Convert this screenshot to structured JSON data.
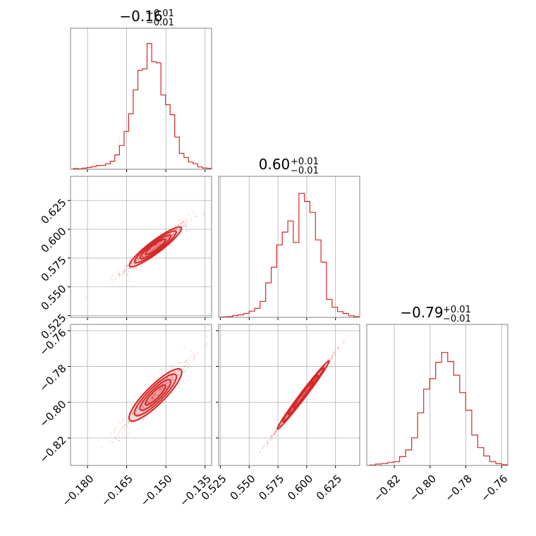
{
  "colors": {
    "accent": "#d62728",
    "grid": "#b0b0b0",
    "frame": "#808080",
    "background": "#ffffff"
  },
  "chart_data": {
    "type": "corner",
    "parameters": [
      {
        "title_main": "−0.16",
        "title_plus": "+0.01",
        "title_minus": "−0.01",
        "range": [
          -0.1865,
          -0.1325
        ],
        "ticks": [
          -0.18,
          -0.165,
          -0.15,
          -0.135
        ],
        "tick_labels": [
          "−0.180",
          "−0.165",
          "−0.150",
          "−0.135"
        ],
        "histogram": [
          0.006,
          0.003,
          0.008,
          0.013,
          0.02,
          0.027,
          0.028,
          0.04,
          0.058,
          0.104,
          0.172,
          0.274,
          0.401,
          0.575,
          0.716,
          0.726,
          0.91,
          0.778,
          0.77,
          0.537,
          0.467,
          0.395,
          0.233,
          0.115,
          0.085,
          0.052,
          0.04,
          0.017,
          0.009,
          0.007
        ]
      },
      {
        "title_main": "0.60",
        "title_plus": "+0.01",
        "title_minus": "−0.01",
        "range": [
          0.5235,
          0.646
        ],
        "ticks": [
          0.525,
          0.55,
          0.575,
          0.6,
          0.625
        ],
        "tick_labels": [
          "0.525",
          "0.550",
          "0.575",
          "0.600",
          "0.625"
        ],
        "histogram": [
          0.003,
          0.006,
          0.013,
          0.018,
          0.028,
          0.045,
          0.066,
          0.116,
          0.25,
          0.362,
          0.524,
          0.617,
          0.698,
          0.542,
          0.897,
          0.839,
          0.759,
          0.56,
          0.4,
          0.13,
          0.073,
          0.042,
          0.028,
          0.011,
          0.005
        ]
      },
      {
        "title_main": "−0.79",
        "title_plus": "+0.01",
        "title_minus": "−0.01",
        "range": [
          -0.8354,
          -0.7565
        ],
        "ticks": [
          -0.82,
          -0.8,
          -0.78,
          -0.76
        ],
        "tick_labels": [
          "−0.82",
          "−0.80",
          "−0.78",
          "−0.76"
        ],
        "histogram": [
          0.003,
          0.01,
          0.014,
          0.022,
          0.027,
          0.064,
          0.113,
          0.2,
          0.381,
          0.552,
          0.628,
          0.747,
          0.818,
          0.752,
          0.653,
          0.527,
          0.4,
          0.22,
          0.129,
          0.069,
          0.028,
          0.013,
          0.005
        ]
      }
    ],
    "pairs": [
      {
        "x": 0,
        "y": 1,
        "slope": 1.7,
        "spread": 0.003,
        "core_x": [
          -0.163,
          -0.145
        ]
      },
      {
        "x": 0,
        "y": 2,
        "slope": 1.45,
        "spread": 0.003,
        "core_x": [
          -0.163,
          -0.145
        ]
      },
      {
        "x": 1,
        "y": 2,
        "slope": 0.85,
        "spread": 0.0008,
        "core_x": [
          0.576,
          0.618
        ]
      }
    ],
    "grid": true
  }
}
